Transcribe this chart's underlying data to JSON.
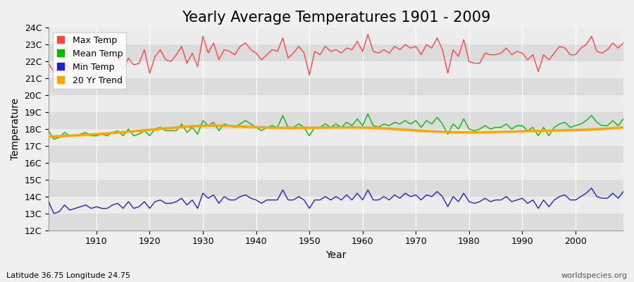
{
  "title": "Yearly Average Temperatures 1901 - 2009",
  "xlabel": "Year",
  "ylabel": "Temperature",
  "lat_lon_label": "Latitude 36.75 Longitude 24.75",
  "source_label": "worldspecies.org",
  "years": [
    1901,
    1902,
    1903,
    1904,
    1905,
    1906,
    1907,
    1908,
    1909,
    1910,
    1911,
    1912,
    1913,
    1914,
    1915,
    1916,
    1917,
    1918,
    1919,
    1920,
    1921,
    1922,
    1923,
    1924,
    1925,
    1926,
    1927,
    1928,
    1929,
    1930,
    1931,
    1932,
    1933,
    1934,
    1935,
    1936,
    1937,
    1938,
    1939,
    1940,
    1941,
    1942,
    1943,
    1944,
    1945,
    1946,
    1947,
    1948,
    1949,
    1950,
    1951,
    1952,
    1953,
    1954,
    1955,
    1956,
    1957,
    1958,
    1959,
    1960,
    1961,
    1962,
    1963,
    1964,
    1965,
    1966,
    1967,
    1968,
    1969,
    1970,
    1971,
    1972,
    1973,
    1974,
    1975,
    1976,
    1977,
    1978,
    1979,
    1980,
    1981,
    1982,
    1983,
    1984,
    1985,
    1986,
    1987,
    1988,
    1989,
    1990,
    1991,
    1992,
    1993,
    1994,
    1995,
    1996,
    1997,
    1998,
    1999,
    2000,
    2001,
    2002,
    2003,
    2004,
    2005,
    2006,
    2007,
    2008,
    2009
  ],
  "max_temp": [
    21.9,
    21.4,
    21.6,
    22.0,
    21.5,
    21.7,
    21.8,
    22.0,
    21.6,
    21.5,
    21.9,
    21.6,
    22.0,
    22.4,
    21.5,
    22.2,
    21.8,
    21.9,
    22.7,
    21.3,
    22.3,
    22.7,
    22.1,
    22.0,
    22.4,
    22.9,
    21.9,
    22.5,
    21.7,
    23.5,
    22.5,
    23.1,
    22.1,
    22.7,
    22.6,
    22.4,
    22.9,
    23.1,
    22.7,
    22.5,
    22.1,
    22.4,
    22.7,
    22.6,
    23.4,
    22.2,
    22.5,
    22.9,
    22.5,
    21.2,
    22.6,
    22.4,
    22.9,
    22.6,
    22.7,
    22.5,
    22.8,
    22.7,
    23.2,
    22.6,
    23.6,
    22.6,
    22.5,
    22.7,
    22.5,
    22.9,
    22.7,
    23.0,
    22.8,
    22.9,
    22.4,
    23.0,
    22.8,
    23.4,
    22.7,
    21.3,
    22.7,
    22.3,
    23.3,
    22.0,
    21.9,
    21.9,
    22.5,
    22.4,
    22.4,
    22.5,
    22.8,
    22.4,
    22.6,
    22.5,
    22.1,
    22.4,
    21.4,
    22.4,
    22.1,
    22.5,
    22.9,
    22.8,
    22.4,
    22.4,
    22.8,
    23.0,
    23.5,
    22.6,
    22.5,
    22.7,
    23.1,
    22.8,
    23.1
  ],
  "mean_temp": [
    17.9,
    17.4,
    17.5,
    17.8,
    17.6,
    17.6,
    17.7,
    17.8,
    17.6,
    17.6,
    17.7,
    17.6,
    17.8,
    17.9,
    17.6,
    18.0,
    17.6,
    17.7,
    17.9,
    17.6,
    18.0,
    18.1,
    17.9,
    17.9,
    17.9,
    18.3,
    17.8,
    18.1,
    17.7,
    18.5,
    18.2,
    18.4,
    17.9,
    18.3,
    18.2,
    18.1,
    18.3,
    18.5,
    18.3,
    18.1,
    17.9,
    18.1,
    18.2,
    18.1,
    18.8,
    18.1,
    18.1,
    18.3,
    18.1,
    17.6,
    18.1,
    18.1,
    18.3,
    18.1,
    18.3,
    18.1,
    18.4,
    18.2,
    18.6,
    18.2,
    18.9,
    18.2,
    18.1,
    18.3,
    18.2,
    18.4,
    18.3,
    18.5,
    18.3,
    18.5,
    18.1,
    18.5,
    18.3,
    18.7,
    18.3,
    17.7,
    18.3,
    18.0,
    18.6,
    18.0,
    17.9,
    18.0,
    18.2,
    18.0,
    18.1,
    18.1,
    18.3,
    18.0,
    18.2,
    18.2,
    17.9,
    18.1,
    17.6,
    18.1,
    17.6,
    18.1,
    18.3,
    18.4,
    18.1,
    18.2,
    18.3,
    18.5,
    18.8,
    18.4,
    18.2,
    18.2,
    18.5,
    18.2,
    18.6
  ],
  "min_temp": [
    13.7,
    13.0,
    13.1,
    13.5,
    13.2,
    13.3,
    13.4,
    13.5,
    13.3,
    13.4,
    13.3,
    13.3,
    13.5,
    13.6,
    13.3,
    13.7,
    13.3,
    13.4,
    13.7,
    13.3,
    13.7,
    13.8,
    13.6,
    13.6,
    13.7,
    13.9,
    13.5,
    13.8,
    13.3,
    14.2,
    13.9,
    14.1,
    13.6,
    14.0,
    13.8,
    13.8,
    14.0,
    14.1,
    13.9,
    13.8,
    13.6,
    13.8,
    13.8,
    13.8,
    14.4,
    13.8,
    13.8,
    14.0,
    13.8,
    13.3,
    13.8,
    13.8,
    14.0,
    13.8,
    14.0,
    13.8,
    14.1,
    13.8,
    14.2,
    13.8,
    14.4,
    13.8,
    13.8,
    14.0,
    13.8,
    14.1,
    13.9,
    14.2,
    14.0,
    14.1,
    13.8,
    14.1,
    14.0,
    14.3,
    14.0,
    13.4,
    14.0,
    13.7,
    14.2,
    13.7,
    13.6,
    13.7,
    13.9,
    13.7,
    13.8,
    13.8,
    14.0,
    13.7,
    13.8,
    13.9,
    13.6,
    13.8,
    13.3,
    13.8,
    13.4,
    13.8,
    14.0,
    14.1,
    13.8,
    13.8,
    14.0,
    14.2,
    14.5,
    14.0,
    13.9,
    13.9,
    14.2,
    13.9,
    14.3
  ],
  "trend_years": [
    1901,
    1911,
    1921,
    1931,
    1941,
    1951,
    1961,
    1971,
    1981,
    1991,
    2001,
    2009
  ],
  "trend": [
    17.55,
    17.72,
    17.98,
    18.2,
    18.1,
    18.08,
    18.08,
    17.9,
    17.8,
    17.88,
    17.95,
    18.1
  ],
  "max_color": "#FF4444",
  "mean_color": "#00BB00",
  "min_color": "#2222CC",
  "trend_color": "#FFA500",
  "bg_color": "#F0F0F0",
  "band_light": "#ECECEC",
  "band_dark": "#DCDCDC",
  "ylim": [
    12,
    24
  ],
  "yticks": [
    12,
    13,
    14,
    15,
    16,
    17,
    18,
    19,
    20,
    21,
    22,
    23,
    24
  ],
  "ytick_labels": [
    "12C",
    "13C",
    "14C",
    "15C",
    "16C",
    "17C",
    "18C",
    "19C",
    "20C",
    "21C",
    "22C",
    "23C",
    "24C"
  ],
  "title_fontsize": 15,
  "axis_label_fontsize": 10,
  "tick_fontsize": 9,
  "legend_fontsize": 9
}
